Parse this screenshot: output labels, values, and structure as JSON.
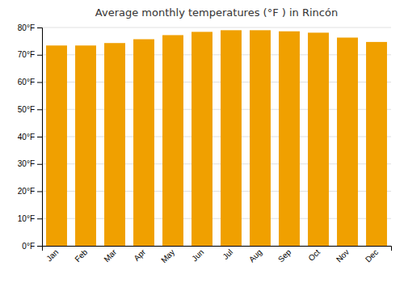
{
  "chart_data": {
    "type": "bar",
    "title": "Average monthly temperatures (°F ) in Rincón",
    "categories": [
      "Jan",
      "Feb",
      "Mar",
      "Apr",
      "May",
      "Jun",
      "Jul",
      "Aug",
      "Sep",
      "Oct",
      "Nov",
      "Dec"
    ],
    "values": [
      73.4,
      73.4,
      74.3,
      75.7,
      77.2,
      78.4,
      79.0,
      79.0,
      78.6,
      78.1,
      76.3,
      74.7
    ],
    "color": "#F0A000",
    "ylim": [
      0,
      80
    ],
    "yticks": [
      {
        "value": 0,
        "label": "0°F"
      },
      {
        "value": 10,
        "label": "10°F"
      },
      {
        "value": 20,
        "label": "20°F"
      },
      {
        "value": 30,
        "label": "30°F"
      },
      {
        "value": 40,
        "label": "40°F"
      },
      {
        "value": 50,
        "label": "50°F"
      },
      {
        "value": 60,
        "label": "60°F"
      },
      {
        "value": 70,
        "label": "70°F"
      },
      {
        "value": 80,
        "label": "80°F"
      }
    ],
    "grid": true
  }
}
